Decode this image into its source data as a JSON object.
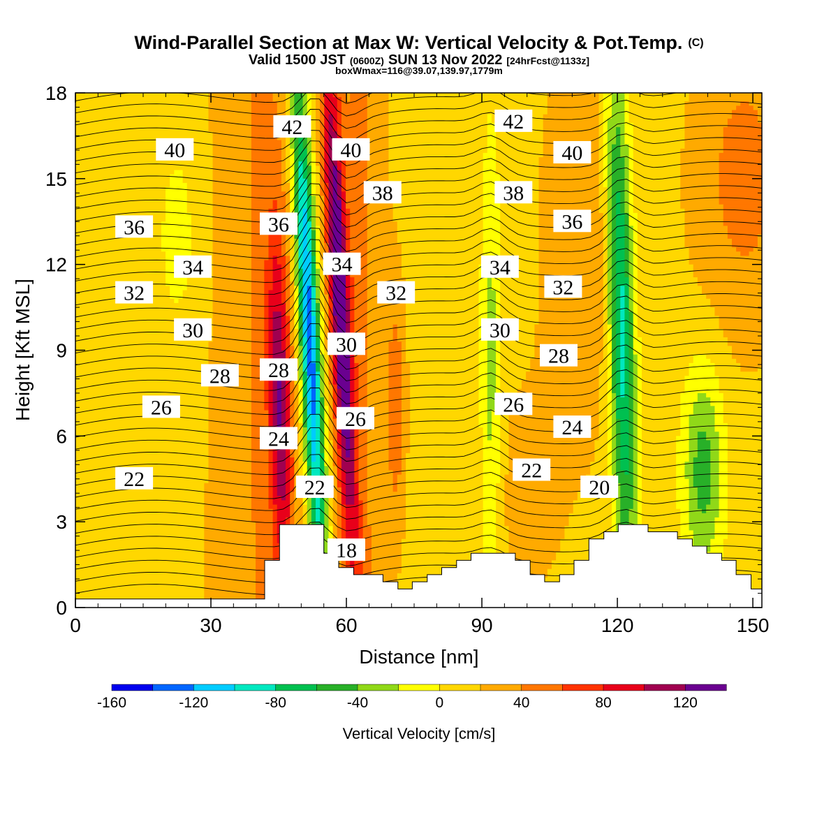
{
  "header": {
    "title": "Wind-Parallel Section at Max W: Vertical Velocity & Pot.Temp.",
    "copyright": "(C)",
    "valid_prefix": "Valid 1500 JST",
    "valid_utc": "(0600Z)",
    "valid_date": "SUN 13 Nov 2022",
    "forecast": "[24hrFcst@1133z]",
    "box_info": "boxWmax=116@39.07,139.97,1779m"
  },
  "chart_data": {
    "type": "heatmap",
    "xlabel": "Distance [nm]",
    "ylabel": "Height [Kft MSL]",
    "xlim": [
      0,
      152
    ],
    "ylim": [
      0,
      18
    ],
    "x_ticks": [
      0,
      30,
      60,
      90,
      120,
      150
    ],
    "y_ticks": [
      0,
      3,
      6,
      9,
      12,
      15,
      18
    ],
    "colorbar": {
      "label": "Vertical Velocity [cm/s]",
      "levels": [
        -160,
        -140,
        -120,
        -100,
        -80,
        -60,
        -40,
        -20,
        0,
        20,
        40,
        60,
        80,
        100,
        120,
        140
      ],
      "tick_labels": [
        -160,
        -120,
        -80,
        -40,
        0,
        40,
        80,
        120
      ],
      "colors": [
        "#0000ee",
        "#0066ff",
        "#00ccff",
        "#00e8c0",
        "#00c050",
        "#28b028",
        "#90d818",
        "#ffff00",
        "#ffd700",
        "#ffaa00",
        "#ff7700",
        "#ff3300",
        "#e8001a",
        "#a00050",
        "#6a0090"
      ]
    },
    "updrafts": [
      {
        "x": 45,
        "peak_cm_s": 100
      },
      {
        "x": 59,
        "peak_cm_s": 120
      },
      {
        "x": 71,
        "peak_cm_s": 60
      }
    ],
    "downdrafts": [
      {
        "x": 52,
        "peak_cm_s": -150
      },
      {
        "x": 92,
        "peak_cm_s": -40
      },
      {
        "x": 121,
        "peak_cm_s": -100
      },
      {
        "x": 139,
        "peak_cm_s": -60
      }
    ],
    "terrain": [
      [
        0,
        0.3
      ],
      [
        41.9,
        0.3
      ],
      [
        41.9,
        1.65
      ],
      [
        45.2,
        1.65
      ],
      [
        45.2,
        2.9
      ],
      [
        55,
        2.9
      ],
      [
        55,
        1.9
      ],
      [
        58.3,
        1.9
      ],
      [
        58.3,
        1.4
      ],
      [
        61.6,
        1.4
      ],
      [
        61.6,
        1.15
      ],
      [
        68.1,
        1.15
      ],
      [
        68.1,
        0.9
      ],
      [
        71.4,
        0.9
      ],
      [
        71.4,
        0.65
      ],
      [
        74.6,
        0.65
      ],
      [
        74.6,
        0.9
      ],
      [
        77.9,
        0.9
      ],
      [
        77.9,
        1.15
      ],
      [
        81.1,
        1.15
      ],
      [
        81.1,
        1.4
      ],
      [
        84.4,
        1.4
      ],
      [
        84.4,
        1.65
      ],
      [
        87.6,
        1.65
      ],
      [
        87.6,
        1.9
      ],
      [
        97.4,
        1.9
      ],
      [
        97.4,
        1.65
      ],
      [
        100.7,
        1.65
      ],
      [
        100.7,
        1.15
      ],
      [
        103.9,
        1.15
      ],
      [
        103.9,
        0.9
      ],
      [
        107.2,
        0.9
      ],
      [
        107.2,
        1.15
      ],
      [
        110.4,
        1.15
      ],
      [
        110.4,
        1.65
      ],
      [
        113.7,
        1.65
      ],
      [
        113.7,
        2.4
      ],
      [
        117,
        2.4
      ],
      [
        117,
        2.65
      ],
      [
        120.2,
        2.65
      ],
      [
        120.2,
        2.9
      ],
      [
        126.8,
        2.9
      ],
      [
        126.8,
        2.65
      ],
      [
        133.3,
        2.65
      ],
      [
        133.3,
        2.4
      ],
      [
        136.6,
        2.4
      ],
      [
        136.6,
        2.15
      ],
      [
        139.8,
        2.15
      ],
      [
        139.8,
        1.9
      ],
      [
        143.1,
        1.9
      ],
      [
        143.1,
        1.65
      ],
      [
        146.3,
        1.65
      ],
      [
        146.3,
        1.15
      ],
      [
        149.6,
        1.15
      ],
      [
        149.6,
        0.65
      ],
      [
        152,
        0.65
      ]
    ],
    "theta_contour_labels": [
      {
        "text": "40",
        "x": 22,
        "y": 16.0
      },
      {
        "text": "36",
        "x": 13,
        "y": 13.3
      },
      {
        "text": "34",
        "x": 26,
        "y": 11.9
      },
      {
        "text": "32",
        "x": 13,
        "y": 11.0
      },
      {
        "text": "30",
        "x": 26,
        "y": 9.7
      },
      {
        "text": "28",
        "x": 32,
        "y": 8.1
      },
      {
        "text": "26",
        "x": 19,
        "y": 7.0
      },
      {
        "text": "22",
        "x": 13,
        "y": 4.5
      },
      {
        "text": "42",
        "x": 48,
        "y": 16.8
      },
      {
        "text": "36",
        "x": 45,
        "y": 13.4
      },
      {
        "text": "28",
        "x": 45,
        "y": 8.3
      },
      {
        "text": "24",
        "x": 45,
        "y": 5.9
      },
      {
        "text": "22",
        "x": 53,
        "y": 4.2
      },
      {
        "text": "40",
        "x": 61,
        "y": 16.0
      },
      {
        "text": "38",
        "x": 68,
        "y": 14.5
      },
      {
        "text": "34",
        "x": 59,
        "y": 12.0
      },
      {
        "text": "32",
        "x": 71,
        "y": 11.0
      },
      {
        "text": "30",
        "x": 60,
        "y": 9.2
      },
      {
        "text": "26",
        "x": 62,
        "y": 6.6
      },
      {
        "text": "18",
        "x": 60,
        "y": 2.0
      },
      {
        "text": "42",
        "x": 97,
        "y": 17.0
      },
      {
        "text": "40",
        "x": 110,
        "y": 15.9
      },
      {
        "text": "38",
        "x": 97,
        "y": 14.5
      },
      {
        "text": "36",
        "x": 110,
        "y": 13.5
      },
      {
        "text": "34",
        "x": 94,
        "y": 11.9
      },
      {
        "text": "32",
        "x": 108,
        "y": 11.2
      },
      {
        "text": "30",
        "x": 94,
        "y": 9.7
      },
      {
        "text": "28",
        "x": 107,
        "y": 8.8
      },
      {
        "text": "26",
        "x": 97,
        "y": 7.1
      },
      {
        "text": "24",
        "x": 110,
        "y": 6.3
      },
      {
        "text": "22",
        "x": 101,
        "y": 4.8
      },
      {
        "text": "20",
        "x": 116,
        "y": 4.2
      }
    ]
  }
}
